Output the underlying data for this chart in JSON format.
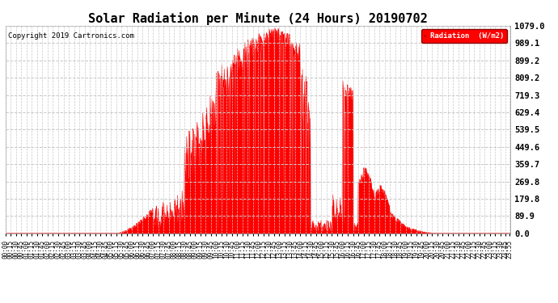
{
  "title": "Solar Radiation per Minute (24 Hours) 20190702",
  "copyright": "Copyright 2019 Cartronics.com",
  "legend_label": "Radiation  (W/m2)",
  "yticks": [
    0.0,
    89.9,
    179.8,
    269.8,
    359.7,
    449.6,
    539.5,
    629.4,
    719.3,
    809.2,
    899.2,
    989.1,
    1079.0
  ],
  "ymax": 1079.0,
  "ymin": 0.0,
  "fill_color": "#ff0000",
  "line_color": "#ff0000",
  "background_color": "#ffffff",
  "grid_color": "#c8c8c8",
  "title_fontsize": 11,
  "copyright_fontsize": 6.5,
  "tick_fontsize": 5.5,
  "ytick_fontsize": 7.5,
  "total_minutes": 1440,
  "sunrise_minute": 318,
  "sunset_minute": 1228
}
